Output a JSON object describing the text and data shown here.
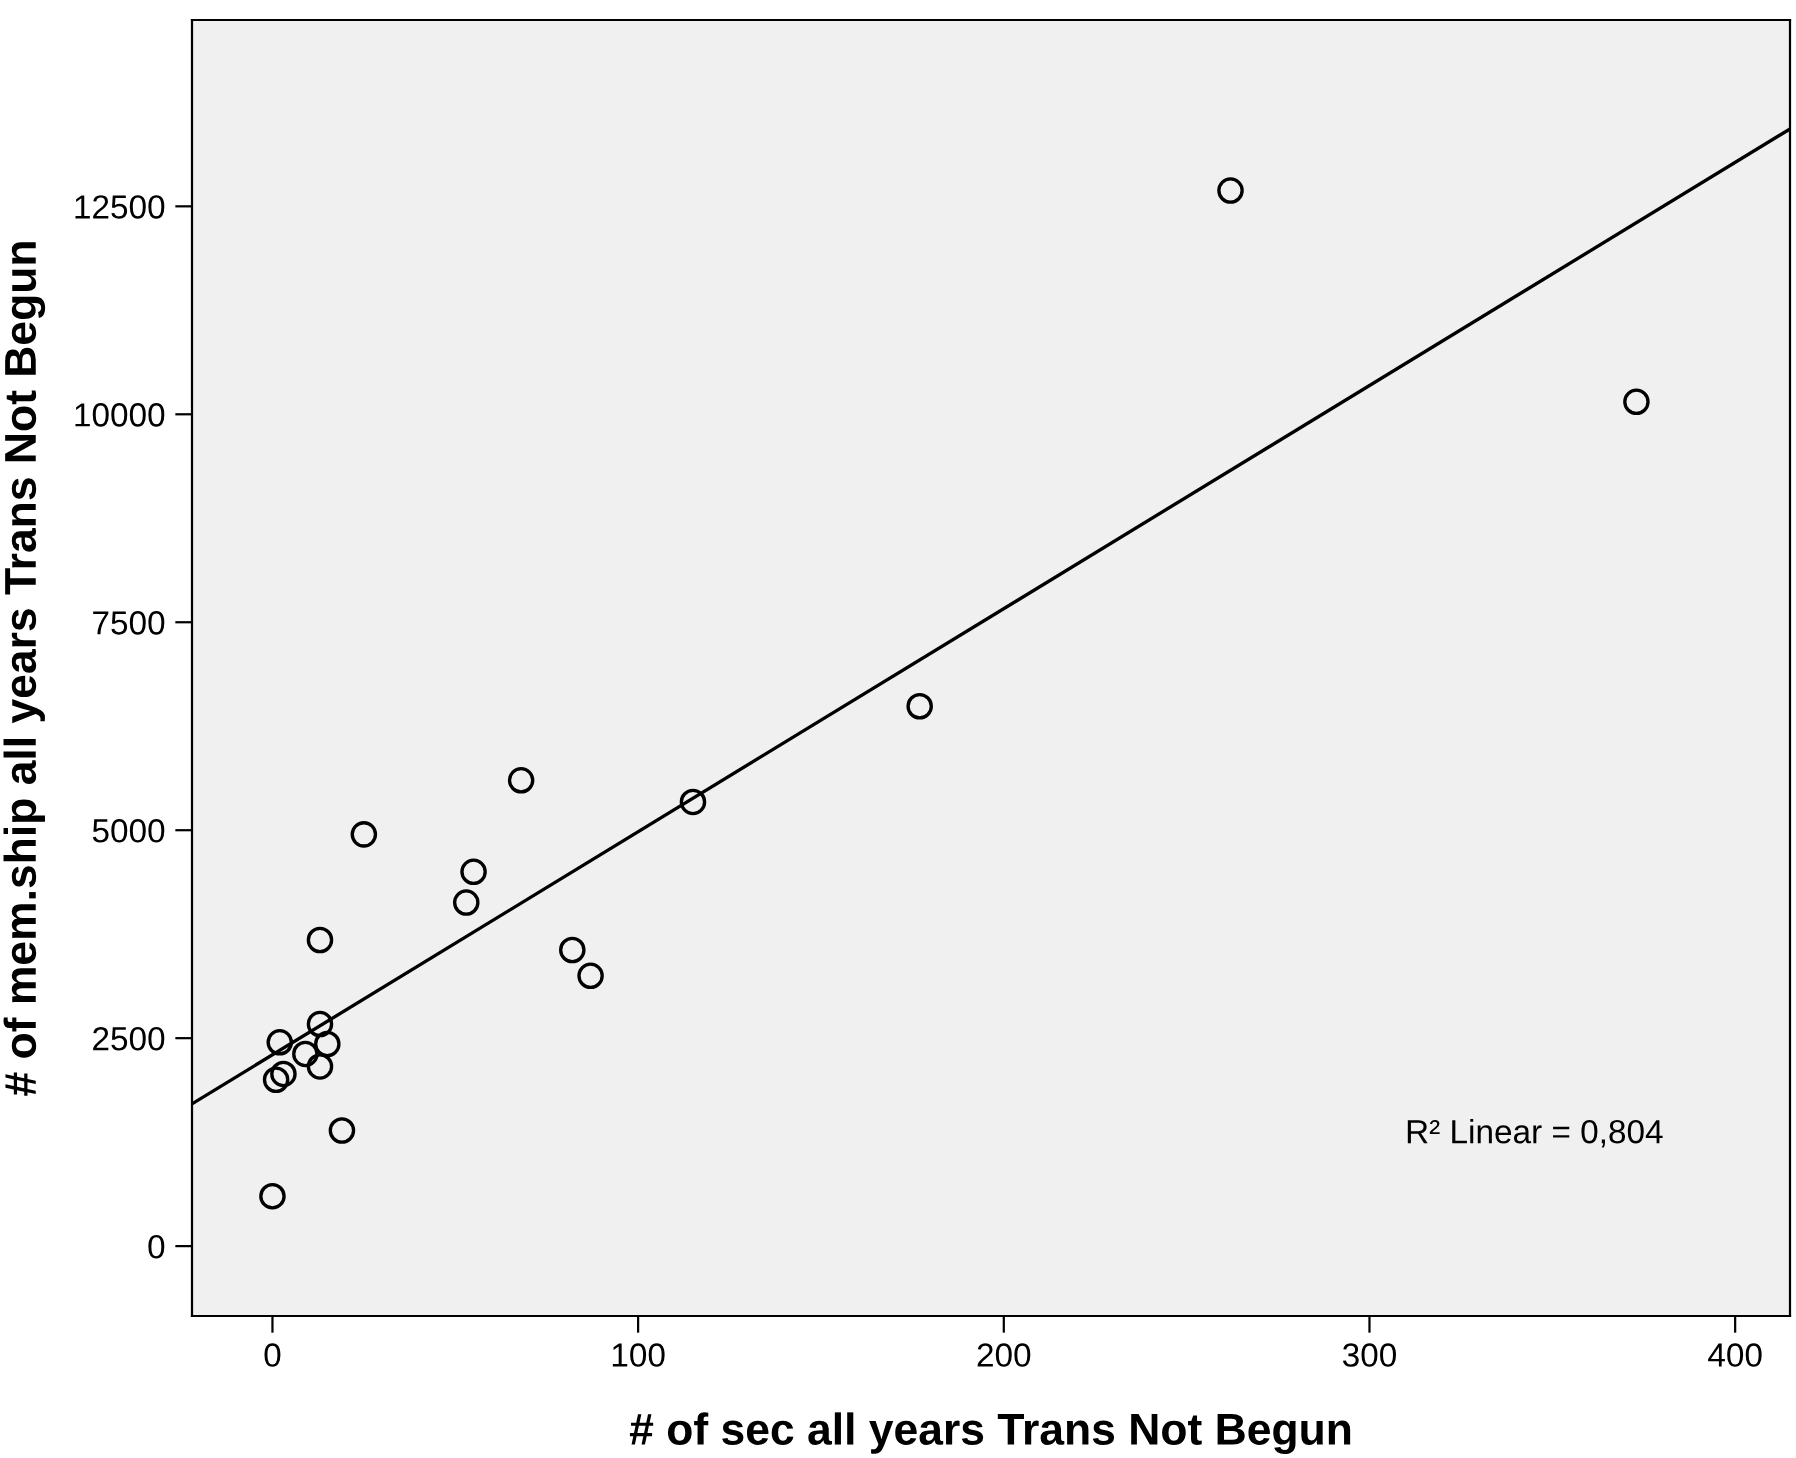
{
  "chart_data": {
    "type": "scatter",
    "xlabel": "# of sec all years Trans Not Begun",
    "ylabel": "# of mem.ship all years Trans Not Begun",
    "xlim": [
      -22,
      415
    ],
    "ylim": [
      -840,
      14740
    ],
    "xticks": [
      0,
      100,
      200,
      300,
      400
    ],
    "yticks": [
      0,
      2500,
      5000,
      7500,
      10000,
      12500
    ],
    "grid": false,
    "annotations": [
      "R² Linear = 0,804"
    ],
    "series": [
      {
        "color": "#000000",
        "marker": "circle",
        "x": [
          0,
          2,
          1,
          3,
          9,
          13,
          15,
          13,
          19,
          13,
          25,
          53,
          55,
          68,
          82,
          87,
          115,
          177,
          262,
          373
        ],
        "values": [
          600,
          2450,
          2000,
          2070,
          2310,
          2670,
          2430,
          2160,
          1390,
          3680,
          4950,
          4130,
          4500,
          5600,
          3560,
          3250,
          5340,
          6490,
          12690,
          10150
        ]
      },
      {
        "type": "line",
        "marker": "none",
        "color": "#000000",
        "x": [
          -22,
          415
        ],
        "values": [
          1710,
          13430
        ]
      }
    ]
  }
}
